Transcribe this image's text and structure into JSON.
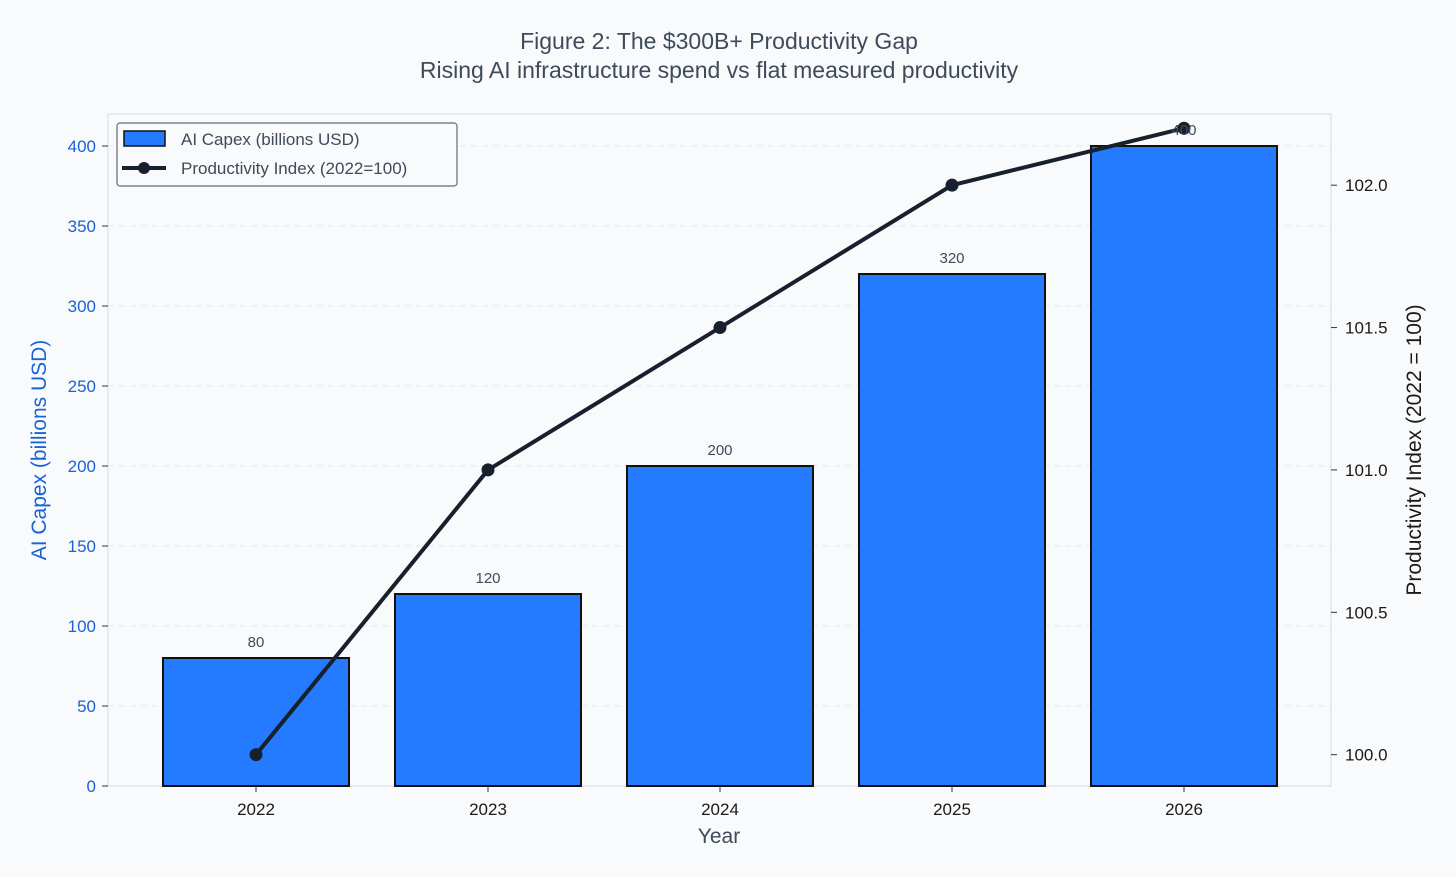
{
  "chart_data": {
    "type": "bar",
    "title": "Figure 2: The $300B+ Productivity Gap",
    "subtitle": "Rising AI infrastructure spend vs flat measured productivity",
    "xlabel": "Year",
    "ylabel_left": "AI Capex (billions USD)",
    "ylabel_right": "Productivity Index (2022 = 100)",
    "categories": [
      "2022",
      "2023",
      "2024",
      "2025",
      "2026"
    ],
    "series": [
      {
        "name": "AI Capex (billions USD)",
        "type": "bar",
        "axis": "left",
        "color": "#247bff",
        "values": [
          80,
          120,
          200,
          320,
          400
        ],
        "data_labels": [
          "80",
          "120",
          "200",
          "320",
          "400"
        ]
      },
      {
        "name": "Productivity Index (2022=100)",
        "type": "line",
        "axis": "right",
        "color": "#18202d",
        "values": [
          100.0,
          101.0,
          101.5,
          102.0,
          102.2
        ]
      }
    ],
    "ylim_left": [
      0,
      420
    ],
    "yticks_left": [
      "0",
      "50",
      "100",
      "150",
      "200",
      "250",
      "300",
      "350",
      "400"
    ],
    "ylim_right": [
      99.89,
      102.25
    ],
    "yticks_right": [
      "100.0",
      "100.5",
      "101.0",
      "101.5",
      "102.0"
    ],
    "grid": "horizontal dashed",
    "legend_position": "top-left"
  }
}
